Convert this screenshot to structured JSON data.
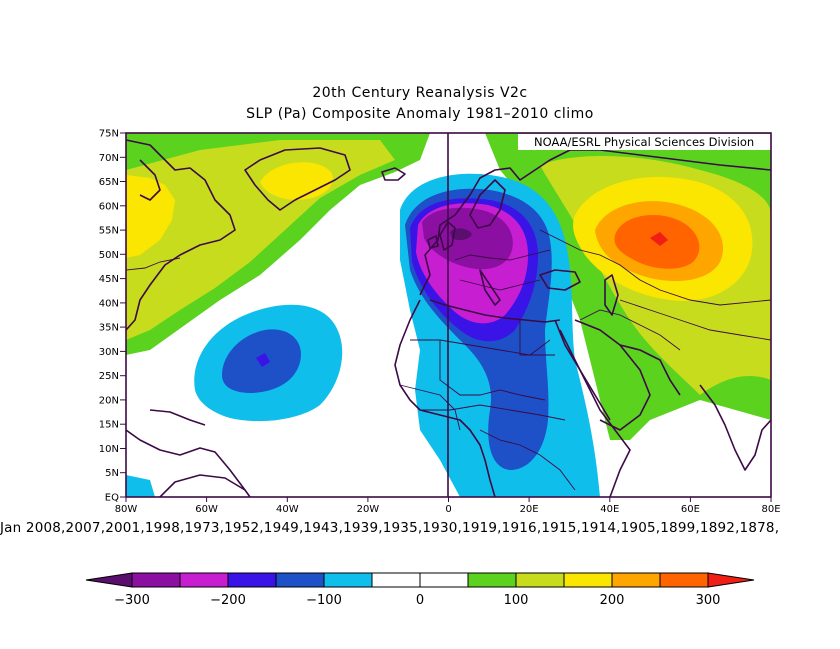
{
  "title": {
    "line1": "20th Century Reanalysis V2c",
    "line2": "SLP (Pa) Composite Anomaly 1981–2010 climo"
  },
  "credit": "NOAA/ESRL Physical Sciences Division",
  "dates_label": "Jan 2008,2007,2001,1998,1973,1952,1949,1943,1939,1935,1930,1919,1916,1915,1914,1905,1899,1892,1878,",
  "axes": {
    "y_labels": [
      "75N",
      "70N",
      "65N",
      "60N",
      "55N",
      "50N",
      "45N",
      "40N",
      "35N",
      "30N",
      "25N",
      "20N",
      "15N",
      "10N",
      "5N",
      "EQ"
    ],
    "x_labels": [
      "80W",
      "60W",
      "40W",
      "20W",
      "0",
      "20E",
      "40E",
      "60E",
      "80E"
    ],
    "lon_range": [
      -80,
      80
    ],
    "lat_range": [
      0,
      75
    ]
  },
  "colorbar": {
    "tick_labels": [
      "−300",
      "−200",
      "−100",
      "0",
      "100",
      "200",
      "300"
    ],
    "colors": [
      "#5a0f6e",
      "#8b0fa0",
      "#c81ed2",
      "#3a14e6",
      "#1e50c8",
      "#0fbeeb",
      "#ffffff",
      "#ffffff",
      "#5ad21e",
      "#c8dc1e",
      "#fae600",
      "#ffa500",
      "#ff6400",
      "#f01e14"
    ]
  },
  "field": {
    "unit": "Pa",
    "low_center_europe": {
      "lon": 3,
      "lat": 54,
      "value": -300
    },
    "low_center_atlantic": {
      "lon": -47,
      "lat": 28,
      "value": -130
    },
    "high_center_siberia": {
      "lon": 52,
      "lat": 53,
      "value": 270
    }
  }
}
